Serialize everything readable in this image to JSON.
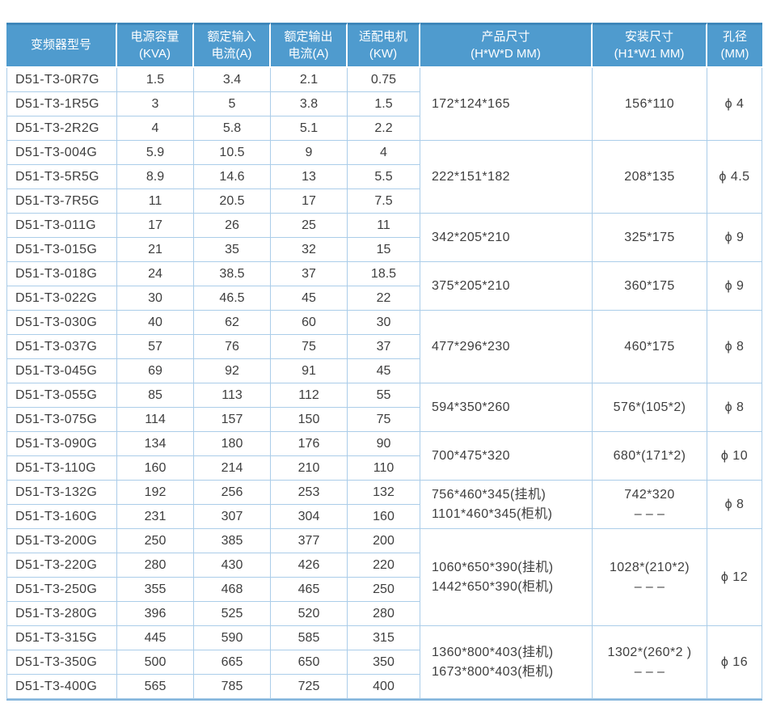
{
  "colors": {
    "header_bg": "#4f9bce",
    "header_top_strip": "#3d86ba",
    "grid_border": "#abcde9",
    "bottom_border": "#84b5dc",
    "header_text": "#ffffff",
    "body_text": "#3e3e3e"
  },
  "table": {
    "columns": [
      {
        "key": "model",
        "label": "变频器型号",
        "sub": ""
      },
      {
        "key": "capacity",
        "label": "电源容量",
        "sub": "(KVA)"
      },
      {
        "key": "input",
        "label": "额定输入",
        "sub": "电流(A)"
      },
      {
        "key": "output",
        "label": "额定输出",
        "sub": "电流(A)"
      },
      {
        "key": "motor",
        "label": "适配电机",
        "sub": "(KW)"
      },
      {
        "key": "product",
        "label": "产品尺寸",
        "sub": "(H*W*D MM)"
      },
      {
        "key": "mount",
        "label": "安装尺寸",
        "sub": "(H1*W1 MM)"
      },
      {
        "key": "aperture",
        "label": "孔径",
        "sub": "(MM)"
      }
    ],
    "rows": [
      [
        "D51-T3-0R7G",
        "1.5",
        "3.4",
        "2.1",
        "0.75"
      ],
      [
        "D51-T3-1R5G",
        "3",
        "5",
        "3.8",
        "1.5"
      ],
      [
        "D51-T3-2R2G",
        "4",
        "5.8",
        "5.1",
        "2.2"
      ],
      [
        "D51-T3-004G",
        "5.9",
        "10.5",
        "9",
        "4"
      ],
      [
        "D51-T3-5R5G",
        "8.9",
        "14.6",
        "13",
        "5.5"
      ],
      [
        "D51-T3-7R5G",
        "11",
        "20.5",
        "17",
        "7.5"
      ],
      [
        "D51-T3-011G",
        "17",
        "26",
        "25",
        "11"
      ],
      [
        "D51-T3-015G",
        "21",
        "35",
        "32",
        "15"
      ],
      [
        "D51-T3-018G",
        "24",
        "38.5",
        "37",
        "18.5"
      ],
      [
        "D51-T3-022G",
        "30",
        "46.5",
        "45",
        "22"
      ],
      [
        "D51-T3-030G",
        "40",
        "62",
        "60",
        "30"
      ],
      [
        "D51-T3-037G",
        "57",
        "76",
        "75",
        "37"
      ],
      [
        "D51-T3-045G",
        "69",
        "92",
        "91",
        "45"
      ],
      [
        "D51-T3-055G",
        "85",
        "113",
        "112",
        "55"
      ],
      [
        "D51-T3-075G",
        "114",
        "157",
        "150",
        "75"
      ],
      [
        "D51-T3-090G",
        "134",
        "180",
        "176",
        "90"
      ],
      [
        "D51-T3-110G",
        "160",
        "214",
        "210",
        "110"
      ],
      [
        "D51-T3-132G",
        "192",
        "256",
        "253",
        "132"
      ],
      [
        "D51-T3-160G",
        "231",
        "307",
        "304",
        "160"
      ],
      [
        "D51-T3-200G",
        "250",
        "385",
        "377",
        "200"
      ],
      [
        "D51-T3-220G",
        "280",
        "430",
        "426",
        "220"
      ],
      [
        "D51-T3-250G",
        "355",
        "468",
        "465",
        "250"
      ],
      [
        "D51-T3-280G",
        "396",
        "525",
        "520",
        "280"
      ],
      [
        "D51-T3-315G",
        "445",
        "590",
        "585",
        "315"
      ],
      [
        "D51-T3-350G",
        "500",
        "665",
        "650",
        "350"
      ],
      [
        "D51-T3-400G",
        "565",
        "785",
        "725",
        "400"
      ]
    ],
    "groups": [
      {
        "rows": 3,
        "product": [
          "172*124*165"
        ],
        "mount": [
          "156*110"
        ],
        "aperture": "ϕ 4"
      },
      {
        "rows": 3,
        "product": [
          "222*151*182"
        ],
        "mount": [
          "208*135"
        ],
        "aperture": "ϕ 4.5"
      },
      {
        "rows": 2,
        "product": [
          "342*205*210"
        ],
        "mount": [
          "325*175"
        ],
        "aperture": "ϕ 9"
      },
      {
        "rows": 2,
        "product": [
          "375*205*210"
        ],
        "mount": [
          "360*175"
        ],
        "aperture": "ϕ 9"
      },
      {
        "rows": 3,
        "product": [
          "477*296*230"
        ],
        "mount": [
          "460*175"
        ],
        "aperture": "ϕ 8"
      },
      {
        "rows": 2,
        "product": [
          "594*350*260"
        ],
        "mount": [
          "576*(105*2)"
        ],
        "aperture": "ϕ 8"
      },
      {
        "rows": 2,
        "product": [
          "700*475*320"
        ],
        "mount": [
          "680*(171*2)"
        ],
        "aperture": "ϕ 10"
      },
      {
        "rows": 2,
        "product": [
          "756*460*345(挂机)",
          "1101*460*345(柜机)"
        ],
        "mount": [
          "742*320",
          "– – –"
        ],
        "aperture": "ϕ 8"
      },
      {
        "rows": 4,
        "product": [
          "1060*650*390(挂机)",
          "1442*650*390(柜机)"
        ],
        "mount": [
          "1028*(210*2)",
          "– – –"
        ],
        "aperture": "ϕ 12"
      },
      {
        "rows": 3,
        "product": [
          "1360*800*403(挂机)",
          "1673*800*403(柜机)"
        ],
        "mount": [
          "1302*(260*2 )",
          "– – –"
        ],
        "aperture": "ϕ 16"
      }
    ]
  }
}
